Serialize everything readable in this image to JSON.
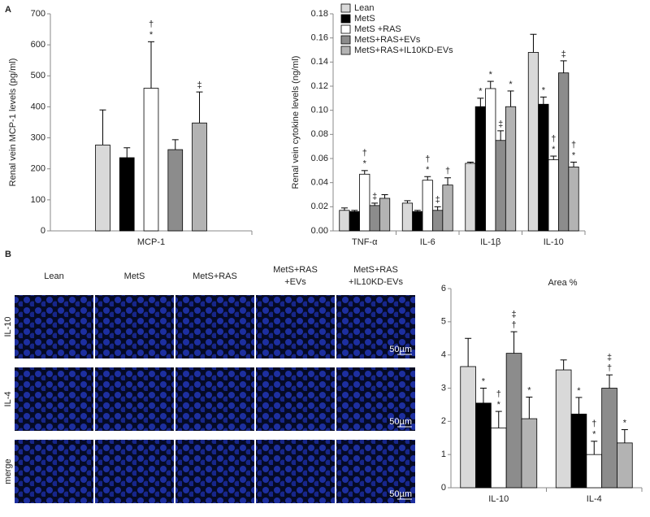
{
  "panel_labels": [
    "A",
    "B"
  ],
  "micrographs": {
    "columns": [
      [
        "Lean"
      ],
      [
        "MetS"
      ],
      [
        "MetS+RAS"
      ],
      [
        "MetS+RAS",
        "+EVs"
      ],
      [
        "MetS+RAS",
        "+IL10KD-EVs"
      ]
    ],
    "rows": [
      "IL-10",
      "IL-4",
      "merge"
    ],
    "scale_bar": "50µm"
  },
  "chart_data": [
    {
      "type": "bar",
      "ylabel": "Renal vein MCP-1 levels (pg/ml)",
      "categories": [
        "MCP-1"
      ],
      "ylim": [
        0,
        700
      ],
      "yticks": [
        0,
        100,
        200,
        300,
        400,
        500,
        600,
        700
      ],
      "series": [
        {
          "color": "#d9d9d9",
          "values": [
            277
          ],
          "errors": [
            113
          ],
          "annotations": [
            null
          ]
        },
        {
          "color": "#000000",
          "values": [
            236
          ],
          "errors": [
            32
          ],
          "annotations": [
            null
          ]
        },
        {
          "color": "#ffffff",
          "values": [
            460
          ],
          "errors": [
            150
          ],
          "annotations": [
            [
              "†",
              "*"
            ]
          ]
        },
        {
          "color": "#8c8c8c",
          "values": [
            262
          ],
          "errors": [
            32
          ],
          "annotations": [
            null
          ]
        },
        {
          "color": "#b3b3b3",
          "values": [
            348
          ],
          "errors": [
            100
          ],
          "annotations": [
            [
              "‡"
            ]
          ]
        }
      ]
    },
    {
      "type": "bar",
      "ylabel": "Renal vein cytokine levels (ng/ml)",
      "categories": [
        "TNF-α",
        "IL-6",
        "IL-1β",
        "IL-10"
      ],
      "ylim": [
        0,
        0.18
      ],
      "yticks": [
        {
          "value": 0,
          "label": "0.00"
        },
        {
          "value": 0.02,
          "label": "0.02"
        },
        {
          "value": 0.04,
          "label": "0.04"
        },
        {
          "value": 0.06,
          "label": "0.06"
        },
        {
          "value": 0.08,
          "label": "0.08"
        },
        {
          "value": 0.1,
          "label": "0.10"
        },
        {
          "value": 0.12,
          "label": "0.12"
        },
        {
          "value": 0.14,
          "label": "0.14"
        },
        {
          "value": 0.16,
          "label": "0.16"
        },
        {
          "value": 0.18,
          "label": "0.18"
        }
      ],
      "series": [
        {
          "name": "Lean",
          "color": "#d9d9d9",
          "values": [
            0.017,
            0.023,
            0.056,
            0.148
          ],
          "errors": [
            0.002,
            0.002,
            0.001,
            0.015
          ],
          "annotations": [
            null,
            null,
            null,
            null
          ]
        },
        {
          "name": "MetS",
          "color": "#000000",
          "values": [
            0.016,
            0.016,
            0.103,
            0.105
          ],
          "errors": [
            0.001,
            0.001,
            0.007,
            0.006
          ],
          "annotations": [
            null,
            null,
            [
              "*"
            ],
            [
              "*"
            ]
          ]
        },
        {
          "name": "MetS +RAS",
          "color": "#ffffff",
          "values": [
            0.047,
            0.042,
            0.118,
            0.059
          ],
          "errors": [
            0.003,
            0.003,
            0.006,
            0.003
          ],
          "annotations": [
            [
              "†",
              "*"
            ],
            [
              "†",
              "*"
            ],
            [
              "*"
            ],
            [
              "†",
              "*"
            ]
          ]
        },
        {
          "name": "MetS+RAS+EVs",
          "color": "#8c8c8c",
          "values": [
            0.021,
            0.017,
            0.075,
            0.131
          ],
          "errors": [
            0.002,
            0.003,
            0.008,
            0.01
          ],
          "annotations": [
            [
              "‡"
            ],
            [
              "‡"
            ],
            [
              "‡"
            ],
            [
              "‡"
            ]
          ]
        },
        {
          "name": "MetS+RAS+IL10KD-EVs",
          "color": "#b3b3b3",
          "values": [
            0.027,
            0.038,
            0.103,
            0.053
          ],
          "errors": [
            0.003,
            0.006,
            0.013,
            0.004
          ],
          "annotations": [
            null,
            [
              "†"
            ],
            [
              "*"
            ],
            [
              "†",
              "*"
            ]
          ]
        }
      ]
    },
    {
      "type": "bar",
      "title": "Area %",
      "categories": [
        "IL-10",
        "IL-4"
      ],
      "ylim": [
        0,
        6
      ],
      "yticks": [
        0,
        1,
        2,
        3,
        4,
        5,
        6
      ],
      "series": [
        {
          "color": "#d9d9d9",
          "values": [
            3.65,
            3.55
          ],
          "errors": [
            0.85,
            0.3
          ],
          "annotations": [
            null,
            null
          ]
        },
        {
          "color": "#000000",
          "values": [
            2.55,
            2.22
          ],
          "errors": [
            0.45,
            0.5
          ],
          "annotations": [
            [
              "*"
            ],
            [
              "*"
            ]
          ]
        },
        {
          "color": "#ffffff",
          "values": [
            1.8,
            1.0
          ],
          "errors": [
            0.5,
            0.4
          ],
          "annotations": [
            [
              "†",
              "*"
            ],
            [
              "†",
              "*"
            ]
          ]
        },
        {
          "color": "#8c8c8c",
          "values": [
            4.05,
            3.0
          ],
          "errors": [
            0.65,
            0.4
          ],
          "annotations": [
            [
              "‡",
              "†"
            ],
            [
              "‡",
              "†"
            ]
          ]
        },
        {
          "color": "#b3b3b3",
          "values": [
            2.08,
            1.35
          ],
          "errors": [
            0.65,
            0.4
          ],
          "annotations": [
            [
              "*"
            ],
            [
              "*"
            ]
          ]
        }
      ]
    }
  ]
}
